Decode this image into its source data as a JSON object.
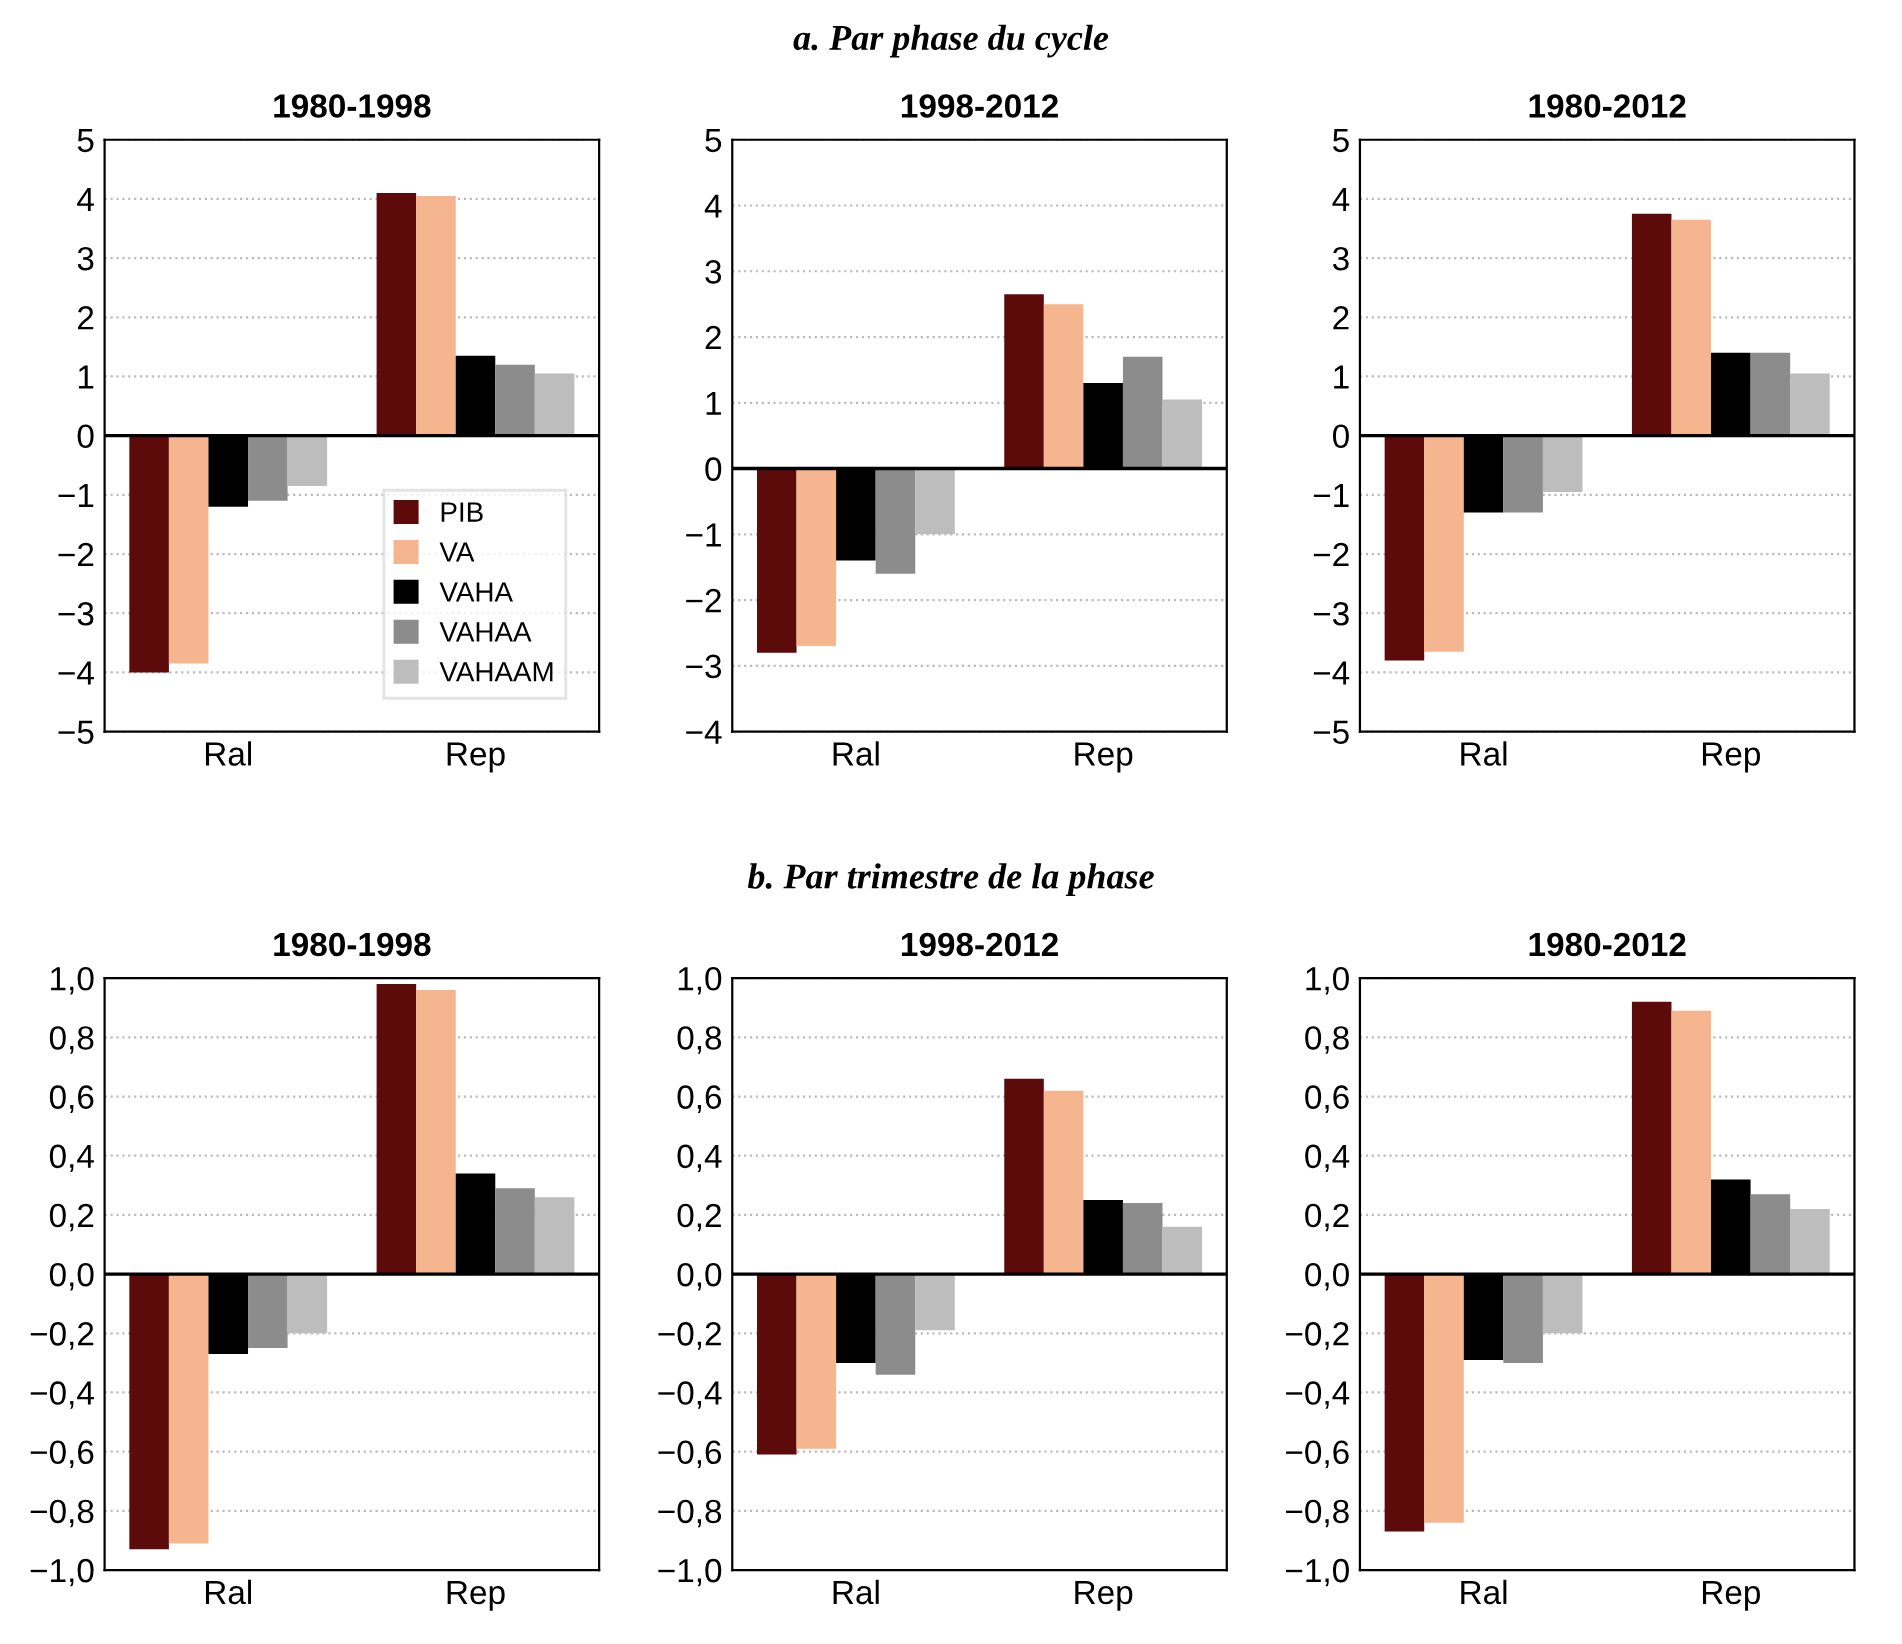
{
  "chart_data": [
    {
      "type": "bar",
      "title": "1980-1998",
      "annotations": [
        "a. Par phase du cycle"
      ],
      "categories": [
        "Ral",
        "Rep"
      ],
      "legend": "bottom right",
      "grid": "y",
      "ylim": [
        -5,
        5
      ],
      "yticks": [
        {
          "value": -5,
          "label": "−5"
        },
        {
          "value": -4,
          "label": "−4"
        },
        {
          "value": -3,
          "label": "−3"
        },
        {
          "value": -2,
          "label": "−2"
        },
        {
          "value": -1,
          "label": "−1"
        },
        0,
        1,
        2,
        3,
        4,
        5
      ],
      "series": [
        {
          "name": "PIB",
          "color": "#5c0a0a",
          "values": [
            -4.0,
            4.1
          ]
        },
        {
          "name": "VA",
          "color": "#f4b58f",
          "values": [
            -3.85,
            4.05
          ]
        },
        {
          "name": "VAHA",
          "color": "#000000",
          "values": [
            -1.2,
            1.35
          ]
        },
        {
          "name": "VAHAA",
          "color": "#8c8c8c",
          "values": [
            -1.1,
            1.2
          ]
        },
        {
          "name": "VAHAAM",
          "color": "#bdbdbd",
          "values": [
            -0.85,
            1.05
          ]
        }
      ]
    },
    {
      "type": "bar",
      "title": "1998-2012",
      "categories": [
        "Ral",
        "Rep"
      ],
      "grid": "y",
      "ylim": [
        -4,
        5
      ],
      "yticks": [
        {
          "value": -4,
          "label": "−4"
        },
        {
          "value": -3,
          "label": "−3"
        },
        {
          "value": -2,
          "label": "−2"
        },
        {
          "value": -1,
          "label": "−1"
        },
        0,
        1,
        2,
        3,
        4,
        5
      ],
      "series": [
        {
          "color": "#5c0a0a",
          "values": [
            -2.8,
            2.65
          ]
        },
        {
          "color": "#f4b58f",
          "values": [
            -2.7,
            2.5
          ]
        },
        {
          "color": "#000000",
          "values": [
            -1.4,
            1.3
          ]
        },
        {
          "color": "#8c8c8c",
          "values": [
            -1.6,
            1.7
          ]
        },
        {
          "color": "#bdbdbd",
          "values": [
            -1.0,
            1.05
          ]
        }
      ]
    },
    {
      "type": "bar",
      "title": "1980-2012",
      "categories": [
        "Ral",
        "Rep"
      ],
      "grid": "y",
      "ylim": [
        -5,
        5
      ],
      "yticks": [
        {
          "value": -5,
          "label": "−5"
        },
        {
          "value": -4,
          "label": "−4"
        },
        {
          "value": -3,
          "label": "−3"
        },
        {
          "value": -2,
          "label": "−2"
        },
        {
          "value": -1,
          "label": "−1"
        },
        0,
        1,
        2,
        3,
        4,
        5
      ],
      "series": [
        {
          "color": "#5c0a0a",
          "values": [
            -3.8,
            3.75
          ]
        },
        {
          "color": "#f4b58f",
          "values": [
            -3.65,
            3.65
          ]
        },
        {
          "color": "#000000",
          "values": [
            -1.3,
            1.4
          ]
        },
        {
          "color": "#8c8c8c",
          "values": [
            -1.3,
            1.4
          ]
        },
        {
          "color": "#bdbdbd",
          "values": [
            -0.95,
            1.05
          ]
        }
      ]
    },
    {
      "type": "bar",
      "title": "1980-1998",
      "annotations": [
        "b. Par trimestre de la phase"
      ],
      "categories": [
        "Ral",
        "Rep"
      ],
      "grid": "y",
      "ylim": [
        -1.0,
        1.0
      ],
      "yticks": [
        {
          "value": -1.0,
          "label": "−1,0"
        },
        {
          "value": -0.8,
          "label": "−0,8"
        },
        {
          "value": -0.6,
          "label": "−0,6"
        },
        {
          "value": -0.4,
          "label": "−0,4"
        },
        {
          "value": -0.2,
          "label": "−0,2"
        },
        {
          "value": 0,
          "label": "0,0"
        },
        {
          "value": 0.2,
          "label": "0,2"
        },
        {
          "value": 0.4,
          "label": "0,4"
        },
        {
          "value": 0.6,
          "label": "0,6"
        },
        {
          "value": 0.8,
          "label": "0,8"
        },
        {
          "value": 1.0,
          "label": "1,0"
        }
      ],
      "series": [
        {
          "color": "#5c0a0a",
          "values": [
            -0.93,
            0.98
          ]
        },
        {
          "color": "#f4b58f",
          "values": [
            -0.91,
            0.96
          ]
        },
        {
          "color": "#000000",
          "values": [
            -0.27,
            0.34
          ]
        },
        {
          "color": "#8c8c8c",
          "values": [
            -0.25,
            0.29
          ]
        },
        {
          "color": "#bdbdbd",
          "values": [
            -0.2,
            0.26
          ]
        }
      ]
    },
    {
      "type": "bar",
      "title": "1998-2012",
      "categories": [
        "Ral",
        "Rep"
      ],
      "grid": "y",
      "ylim": [
        -1.0,
        1.0
      ],
      "yticks": [
        {
          "value": -1.0,
          "label": "−1,0"
        },
        {
          "value": -0.8,
          "label": "−0,8"
        },
        {
          "value": -0.6,
          "label": "−0,6"
        },
        {
          "value": -0.4,
          "label": "−0,4"
        },
        {
          "value": -0.2,
          "label": "−0,2"
        },
        {
          "value": 0,
          "label": "0,0"
        },
        {
          "value": 0.2,
          "label": "0,2"
        },
        {
          "value": 0.4,
          "label": "0,4"
        },
        {
          "value": 0.6,
          "label": "0,6"
        },
        {
          "value": 0.8,
          "label": "0,8"
        },
        {
          "value": 1.0,
          "label": "1,0"
        }
      ],
      "series": [
        {
          "color": "#5c0a0a",
          "values": [
            -0.61,
            0.66
          ]
        },
        {
          "color": "#f4b58f",
          "values": [
            -0.59,
            0.62
          ]
        },
        {
          "color": "#000000",
          "values": [
            -0.3,
            0.25
          ]
        },
        {
          "color": "#8c8c8c",
          "values": [
            -0.34,
            0.24
          ]
        },
        {
          "color": "#bdbdbd",
          "values": [
            -0.19,
            0.16
          ]
        }
      ]
    },
    {
      "type": "bar",
      "title": "1980-2012",
      "categories": [
        "Ral",
        "Rep"
      ],
      "grid": "y",
      "ylim": [
        -1.0,
        1.0
      ],
      "yticks": [
        {
          "value": -1.0,
          "label": "−1,0"
        },
        {
          "value": -0.8,
          "label": "−0,8"
        },
        {
          "value": -0.6,
          "label": "−0,6"
        },
        {
          "value": -0.4,
          "label": "−0,4"
        },
        {
          "value": -0.2,
          "label": "−0,2"
        },
        {
          "value": 0,
          "label": "0,0"
        },
        {
          "value": 0.2,
          "label": "0,2"
        },
        {
          "value": 0.4,
          "label": "0,4"
        },
        {
          "value": 0.6,
          "label": "0,6"
        },
        {
          "value": 0.8,
          "label": "0,8"
        },
        {
          "value": 1.0,
          "label": "1,0"
        }
      ],
      "series": [
        {
          "color": "#5c0a0a",
          "values": [
            -0.87,
            0.92
          ]
        },
        {
          "color": "#f4b58f",
          "values": [
            -0.84,
            0.89
          ]
        },
        {
          "color": "#000000",
          "values": [
            -0.29,
            0.32
          ]
        },
        {
          "color": "#8c8c8c",
          "values": [
            -0.3,
            0.27
          ]
        },
        {
          "color": "#bdbdbd",
          "values": [
            -0.2,
            0.22
          ]
        }
      ]
    }
  ]
}
